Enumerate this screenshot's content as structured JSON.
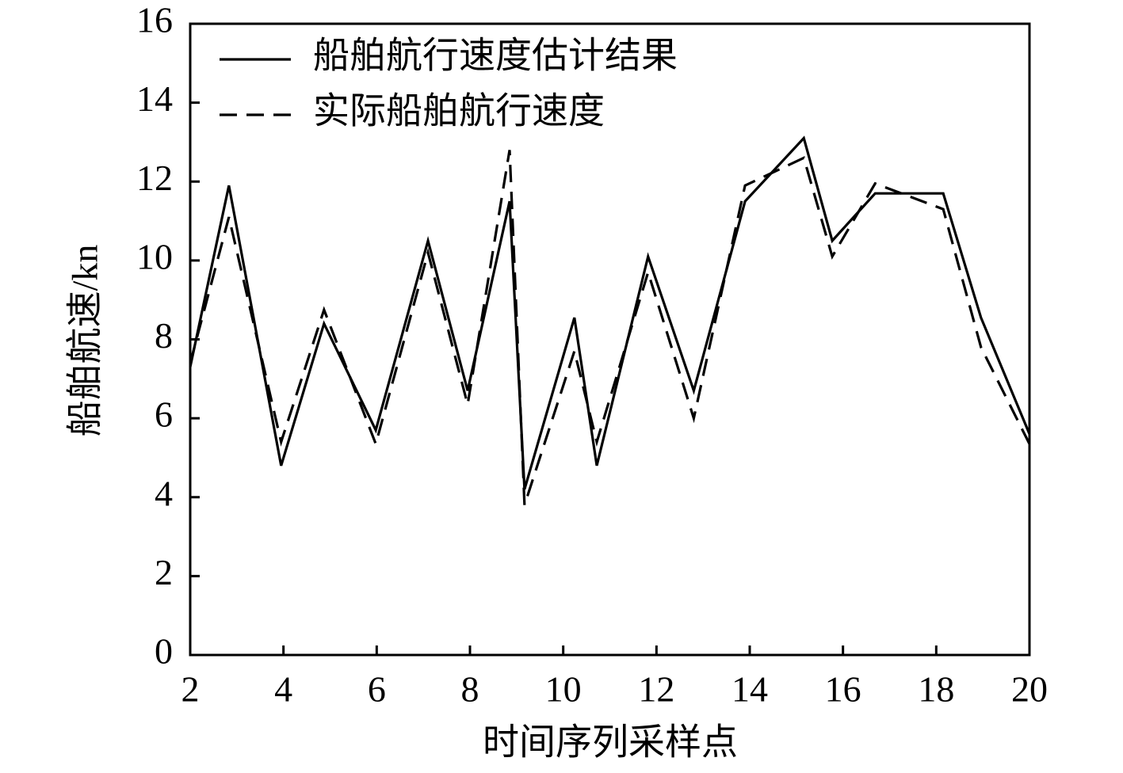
{
  "chart_data": {
    "type": "line",
    "x_label": "时间序列采样点",
    "y_label": "船舶航速/kn",
    "x": [
      2,
      2.83,
      3.95,
      4.87,
      5.98,
      7.1,
      7.95,
      8.85,
      9.17,
      10.24,
      10.72,
      11.82,
      12.8,
      13.9,
      15.16,
      15.77,
      16.69,
      18.15,
      18.96,
      20
    ],
    "series": [
      {
        "name": "船舶航行速度估计结果",
        "color": "#000000",
        "linestyle": "solid",
        "values": [
          7.3,
          11.9,
          4.8,
          8.4,
          5.7,
          10.5,
          6.7,
          11.5,
          4.2,
          8.55,
          4.8,
          10.1,
          6.7,
          11.5,
          13.1,
          10.5,
          11.7,
          11.7,
          8.55,
          5.6
        ]
      },
      {
        "name": "实际船舶航行速度",
        "color": "#000000",
        "linestyle": "dashed",
        "values": [
          7.4,
          11.1,
          5.4,
          8.75,
          5.35,
          10.2,
          6.35,
          12.8,
          3.8,
          7.7,
          5.4,
          9.7,
          6.0,
          11.9,
          12.6,
          10.1,
          11.95,
          11.3,
          7.8,
          5.35
        ]
      }
    ],
    "xlim": [
      2,
      20
    ],
    "xticks": [
      2,
      4,
      6,
      8,
      10,
      12,
      14,
      16,
      18,
      20
    ],
    "ylim": [
      0,
      16
    ],
    "yticks": [
      0,
      2,
      4,
      6,
      8,
      10,
      12,
      14,
      16
    ],
    "grid": false,
    "legend": "upper left"
  }
}
